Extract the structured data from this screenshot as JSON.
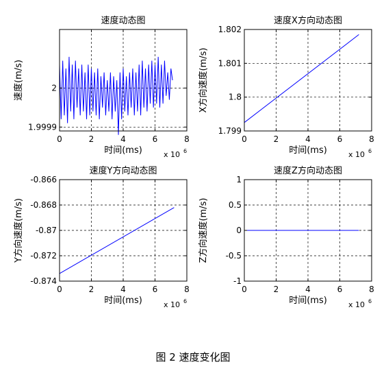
{
  "caption": "图 2 速度变化图",
  "chart_data": [
    {
      "type": "line",
      "title": "速度动态图",
      "xlabel": "时间(ms)",
      "ylabel": "速度(m/s)",
      "x_multiplier": "x 10",
      "x_exponent": "6",
      "xlim": [
        0,
        8000000
      ],
      "ylim": [
        1.99989,
        2.00015
      ],
      "xticks": [
        0,
        2000000,
        4000000,
        6000000,
        8000000
      ],
      "xtick_labels": [
        "0",
        "2",
        "4",
        "6",
        "8"
      ],
      "yticks": [
        1.9999,
        2.0
      ],
      "ytick_labels": [
        "1.9999",
        "2"
      ],
      "grid": true,
      "line_color": "#0000ff",
      "series": [
        {
          "x": [
            0,
            100000,
            200000,
            300000,
            400000,
            500000,
            600000,
            700000,
            800000,
            900000,
            1000000,
            1100000,
            1200000,
            1300000,
            1400000,
            1500000,
            1600000,
            1700000,
            1800000,
            1900000,
            2000000,
            2100000,
            2200000,
            2300000,
            2400000,
            2500000,
            2600000,
            2700000,
            2800000,
            2900000,
            3000000,
            3100000,
            3200000,
            3300000,
            3400000,
            3500000,
            3600000,
            3700000,
            3800000,
            3900000,
            4000000,
            4100000,
            4200000,
            4300000,
            4400000,
            4500000,
            4600000,
            4700000,
            4800000,
            4900000,
            5000000,
            5100000,
            5200000,
            5300000,
            5400000,
            5500000,
            5600000,
            5700000,
            5800000,
            5900000,
            6000000,
            6100000,
            6200000,
            6300000,
            6400000,
            6500000,
            6600000,
            6700000,
            6800000,
            6900000,
            7000000,
            7100000
          ],
          "values": [
            2.00006,
            1.99992,
            2.00007,
            1.99993,
            2.00005,
            1.99991,
            2.00008,
            1.99994,
            2.00006,
            1.99992,
            2.00007,
            1.99995,
            2.00005,
            1.99993,
            2.00006,
            1.99994,
            2.00004,
            1.99992,
            2.00006,
            1.99993,
            2.00005,
            1.99994,
            2.00004,
            1.99993,
            2.00005,
            1.99992,
            2.00003,
            1.99995,
            2.00004,
            1.99993,
            2.00002,
            1.99994,
            2.00004,
            1.99992,
            2.00003,
            1.99994,
            2.00002,
            1.99988,
            2.00004,
            1.99992,
            2.00005,
            1.99994,
            2.00003,
            1.99993,
            2.00004,
            1.99995,
            2.00005,
            1.99993,
            2.00004,
            1.99994,
            2.00006,
            1.99993,
            2.00007,
            1.99995,
            2.00005,
            1.99994,
            2.00006,
            1.99996,
            2.00007,
            1.99995,
            2.00006,
            1.99996,
            2.00008,
            1.99995,
            2.00006,
            1.99996,
            2.00007,
            1.99998,
            2.00004,
            1.99997,
            2.00005,
            2.00002
          ]
        }
      ]
    },
    {
      "type": "line",
      "title": "速度X方向动态图",
      "xlabel": "时间(ms)",
      "ylabel": "X方向速度(m/s)",
      "x_multiplier": "x 10",
      "x_exponent": "6",
      "xlim": [
        0,
        8000000
      ],
      "ylim": [
        1.799,
        1.802
      ],
      "xticks": [
        0,
        2000000,
        4000000,
        6000000,
        8000000
      ],
      "xtick_labels": [
        "0",
        "2",
        "4",
        "6",
        "8"
      ],
      "yticks": [
        1.799,
        1.8,
        1.801,
        1.802
      ],
      "ytick_labels": [
        "1.799",
        "1.8",
        "1.801",
        "1.802"
      ],
      "grid": true,
      "line_color": "#0000ff",
      "series": [
        {
          "x": [
            0,
            7200000
          ],
          "values": [
            1.79925,
            1.80185
          ]
        }
      ]
    },
    {
      "type": "line",
      "title": "速度Y方向动态图",
      "xlabel": "时间(ms)",
      "ylabel": "Y方向速度(m/s)",
      "x_multiplier": "x 10",
      "x_exponent": "6",
      "xlim": [
        0,
        8000000
      ],
      "ylim": [
        -0.874,
        -0.866
      ],
      "xticks": [
        0,
        2000000,
        4000000,
        6000000,
        8000000
      ],
      "xtick_labels": [
        "0",
        "2",
        "4",
        "6",
        "8"
      ],
      "yticks": [
        -0.874,
        -0.872,
        -0.87,
        -0.868,
        -0.866
      ],
      "ytick_labels": [
        "-0.874",
        "-0.872",
        "-0.87",
        "-0.868",
        "-0.866"
      ],
      "grid": true,
      "line_color": "#0000ff",
      "series": [
        {
          "x": [
            0,
            7200000
          ],
          "values": [
            -0.8734,
            -0.8682
          ]
        }
      ]
    },
    {
      "type": "line",
      "title": "速度Z方向动态图",
      "xlabel": "时间(ms)",
      "ylabel": "Z方向速度(m/s)",
      "x_multiplier": "x 10",
      "x_exponent": "6",
      "xlim": [
        0,
        8000000
      ],
      "ylim": [
        -1,
        1
      ],
      "xticks": [
        0,
        2000000,
        4000000,
        6000000,
        8000000
      ],
      "xtick_labels": [
        "0",
        "2",
        "4",
        "6",
        "8"
      ],
      "yticks": [
        -1,
        -0.5,
        0,
        0.5,
        1
      ],
      "ytick_labels": [
        "-1",
        "-0.5",
        "0",
        "0.5",
        "1"
      ],
      "grid": true,
      "line_color": "#0000ff",
      "series": [
        {
          "x": [
            0,
            7200000
          ],
          "values": [
            0,
            0
          ]
        }
      ]
    }
  ]
}
